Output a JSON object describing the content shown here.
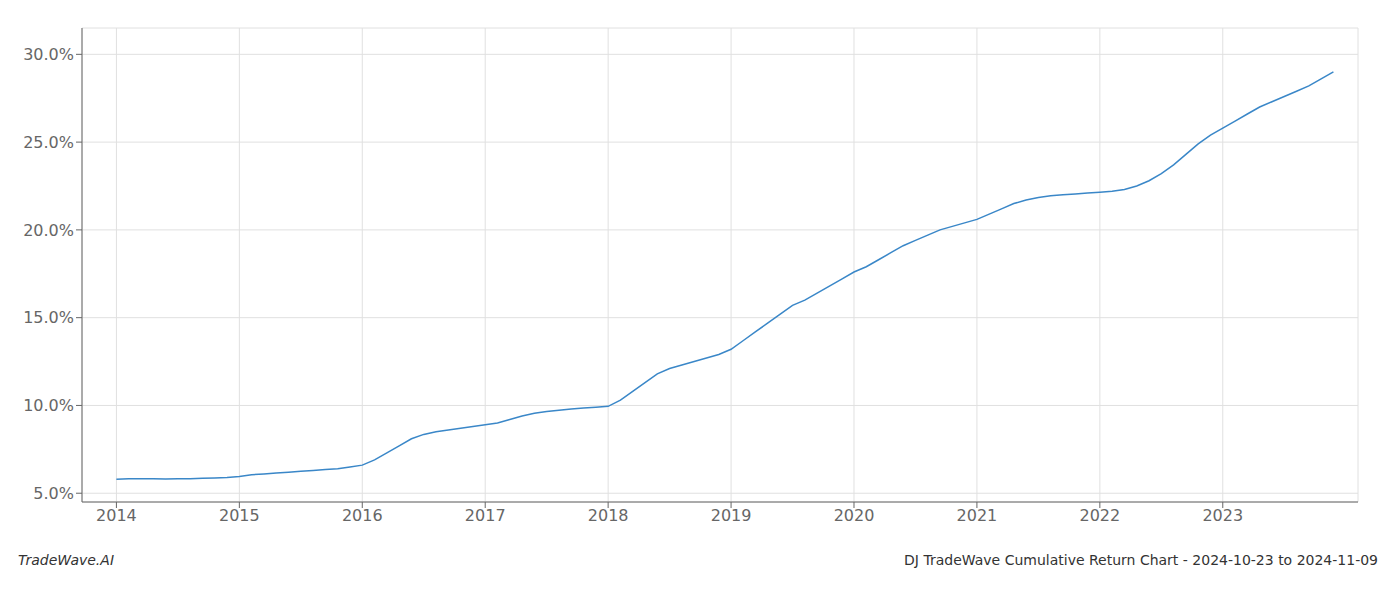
{
  "chart_data": {
    "type": "line",
    "annotations": [
      "TradeWave.AI",
      "DJ TradeWave Cumulative Return Chart - 2024-10-23 to 2024-11-09"
    ],
    "x": [
      2014.0,
      2014.1,
      2014.2,
      2014.3,
      2014.4,
      2014.5,
      2014.6,
      2014.7,
      2014.8,
      2014.9,
      2015.0,
      2015.1,
      2015.2,
      2015.3,
      2015.4,
      2015.5,
      2015.6,
      2015.7,
      2015.8,
      2015.9,
      2016.0,
      2016.1,
      2016.2,
      2016.3,
      2016.4,
      2016.5,
      2016.6,
      2016.7,
      2016.8,
      2016.9,
      2017.0,
      2017.1,
      2017.2,
      2017.3,
      2017.4,
      2017.5,
      2017.6,
      2017.7,
      2017.8,
      2017.9,
      2018.0,
      2018.1,
      2018.2,
      2018.3,
      2018.4,
      2018.5,
      2018.6,
      2018.7,
      2018.8,
      2018.9,
      2019.0,
      2019.1,
      2019.2,
      2019.3,
      2019.4,
      2019.5,
      2019.6,
      2019.7,
      2019.8,
      2019.9,
      2020.0,
      2020.1,
      2020.2,
      2020.3,
      2020.4,
      2020.5,
      2020.6,
      2020.7,
      2020.8,
      2020.9,
      2021.0,
      2021.1,
      2021.2,
      2021.3,
      2021.4,
      2021.5,
      2021.6,
      2021.7,
      2021.8,
      2021.9,
      2022.0,
      2022.1,
      2022.2,
      2022.3,
      2022.4,
      2022.5,
      2022.6,
      2022.7,
      2022.8,
      2022.9,
      2023.0,
      2023.1,
      2023.2,
      2023.3,
      2023.4,
      2023.5,
      2023.6,
      2023.7,
      2023.8,
      2023.9
    ],
    "values": [
      5.8,
      5.82,
      5.83,
      5.82,
      5.81,
      5.82,
      5.83,
      5.85,
      5.87,
      5.9,
      5.95,
      6.05,
      6.1,
      6.15,
      6.2,
      6.25,
      6.3,
      6.35,
      6.4,
      6.5,
      6.6,
      6.9,
      7.3,
      7.7,
      8.1,
      8.35,
      8.5,
      8.6,
      8.7,
      8.8,
      8.9,
      9.0,
      9.2,
      9.4,
      9.55,
      9.65,
      9.72,
      9.8,
      9.85,
      9.9,
      9.95,
      10.3,
      10.8,
      11.3,
      11.8,
      12.1,
      12.3,
      12.5,
      12.7,
      12.9,
      13.2,
      13.7,
      14.2,
      14.7,
      15.2,
      15.7,
      16.0,
      16.4,
      16.8,
      17.2,
      17.6,
      17.9,
      18.3,
      18.7,
      19.1,
      19.4,
      19.7,
      20.0,
      20.2,
      20.4,
      20.6,
      20.9,
      21.2,
      21.5,
      21.7,
      21.85,
      21.95,
      22.0,
      22.05,
      22.1,
      22.15,
      22.2,
      22.3,
      22.5,
      22.8,
      23.2,
      23.7,
      24.3,
      24.9,
      25.4,
      25.8,
      26.2,
      26.6,
      27.0,
      27.3,
      27.6,
      27.9,
      28.2,
      28.6,
      29.0
    ],
    "color": "#3a87c8",
    "xlim": [
      2013.72,
      2024.1
    ],
    "ylim": [
      4.5,
      31.5
    ],
    "xticks": [
      2014,
      2015,
      2016,
      2017,
      2018,
      2019,
      2020,
      2021,
      2022,
      2023
    ],
    "yticks": [
      {
        "value": 5.0,
        "label": "5.0%"
      },
      {
        "value": 10.0,
        "label": "10.0%"
      },
      {
        "value": 15.0,
        "label": "15.0%"
      },
      {
        "value": 20.0,
        "label": "20.0%"
      },
      {
        "value": 25.0,
        "label": "25.0%"
      },
      {
        "value": 30.0,
        "label": "30.0%"
      }
    ],
    "grid": true,
    "marker": "none"
  }
}
